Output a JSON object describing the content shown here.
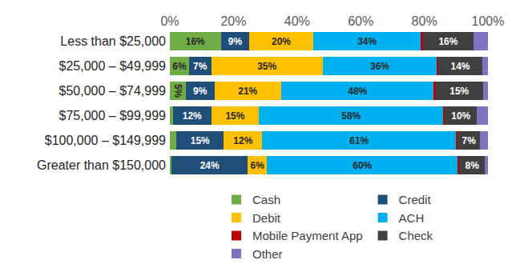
{
  "chart_data": {
    "type": "bar",
    "orientation": "horizontal",
    "stacked": true,
    "data_labels": true,
    "grid": false,
    "legend": "bottom",
    "categories": [
      "Less than $25,000",
      "$25,000 – $49,999",
      "$50,000 – $74,999",
      "$75,000 – $99,999",
      "$100,000 – $149,999",
      "Greater than $150,000"
    ],
    "xlim": [
      0,
      100
    ],
    "xticks": [
      {
        "value": 0,
        "label": "0%"
      },
      {
        "value": 20,
        "label": "20%"
      },
      {
        "value": 40,
        "label": "40%"
      },
      {
        "value": 60,
        "label": "60%"
      },
      {
        "value": 80,
        "label": "80%"
      },
      {
        "value": 100,
        "label": "100%"
      }
    ],
    "series": [
      {
        "name": "Cash",
        "color": "#70ad47",
        "values": [
          16,
          6,
          5,
          1,
          2,
          0.5
        ],
        "value_labels": [
          "16%",
          "6%",
          "5%",
          null,
          null,
          null
        ]
      },
      {
        "name": "Credit",
        "color": "#1f4e79",
        "values": [
          9,
          7,
          9,
          12,
          15,
          24
        ],
        "value_labels": [
          "9%",
          "7%",
          "9%",
          "12%",
          "15%",
          "24%"
        ]
      },
      {
        "name": "Debit",
        "color": "#ffc000",
        "values": [
          20,
          35,
          21,
          15,
          12,
          6
        ],
        "value_labels": [
          "20%",
          "35%",
          "21%",
          "15%",
          "12%",
          "6%"
        ]
      },
      {
        "name": "ACH",
        "color": "#00b0f0",
        "values": [
          34,
          36,
          48,
          58,
          61,
          60
        ],
        "value_labels": [
          "34%",
          "36%",
          "48%",
          "58%",
          "61%",
          "60%"
        ]
      },
      {
        "name": "Mobile Payment App",
        "color": "#c00000",
        "values": [
          0.5,
          0.3,
          0.5,
          0.5,
          0.5,
          0.5
        ],
        "value_labels": [
          null,
          null,
          null,
          null,
          null,
          null
        ]
      },
      {
        "name": "Check",
        "color": "#404040",
        "values": [
          16,
          14,
          15,
          10,
          7,
          8
        ],
        "value_labels": [
          "16%",
          "14%",
          "15%",
          "10%",
          "7%",
          "8%"
        ]
      },
      {
        "name": "Other",
        "color": "#7f72c2",
        "values": [
          4.5,
          1.7,
          1.5,
          3.5,
          2.5,
          1
        ],
        "value_labels": [
          null,
          null,
          null,
          null,
          null,
          null
        ]
      }
    ]
  }
}
